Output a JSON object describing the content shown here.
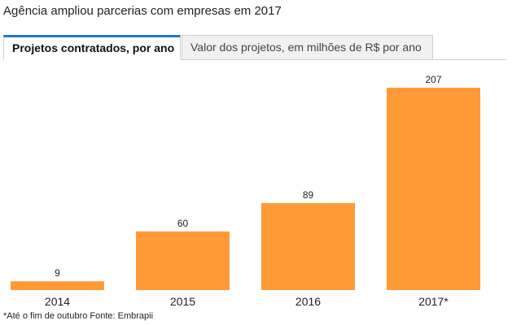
{
  "title": "Agência ampliou parcerias com empresas em 2017",
  "tabs": [
    {
      "label": "Projetos contratados, por ano",
      "active": true
    },
    {
      "label": "Valor dos projetos, em milhões de R$ por ano",
      "active": false
    }
  ],
  "footnote": "*Até o fim de outubro Fonte: Embrapii",
  "colors": {
    "bar": "#ff9a36",
    "tab_accent": "#1f7cc3"
  },
  "chart_data": {
    "type": "bar",
    "categories": [
      "2014",
      "2015",
      "2016",
      "2017*"
    ],
    "values": [
      9,
      60,
      89,
      207
    ],
    "data_labels": [
      "9",
      "60",
      "89",
      "207"
    ],
    "title": "",
    "xlabel": "",
    "ylabel": "",
    "ylim": [
      0,
      207
    ],
    "grid": false,
    "legend": "none"
  }
}
